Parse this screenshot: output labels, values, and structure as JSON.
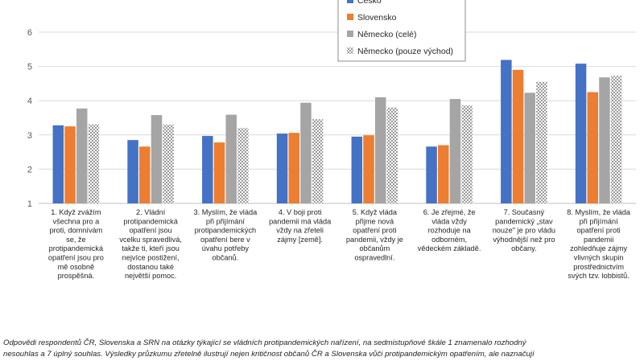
{
  "chart_data": {
    "type": "bar",
    "title": "",
    "xlabel": "",
    "ylabel": "",
    "ylim": [
      1,
      6
    ],
    "yticks": [
      1,
      2,
      3,
      4,
      5,
      6
    ],
    "grid": true,
    "legend_position": "top-right",
    "categories": [
      [
        "1. Když zvážím",
        "všechna pro a",
        "proti, domnívám",
        "se, že",
        "protipandemická",
        "opatření jsou pro",
        "mě osobně",
        "prospěšná."
      ],
      [
        "2. Vládní",
        "protipandemická",
        "opatření jsou",
        "vcelku spravedlivá,",
        "takže ti, kteří jsou",
        "nejvíce postižení,",
        "dostanou také",
        "největší pomoc."
      ],
      [
        "3. Myslím, že vláda",
        "při přijímání",
        "protipandemických",
        "opatření bere v",
        "úvahu potřeby",
        "občanů."
      ],
      [
        "4. V boji proti",
        "pandemii má vláda",
        "vždy na zřeteli",
        "zájmy [země]."
      ],
      [
        "5. Když vláda",
        "přijme nová",
        "opatření proti",
        "pandemii, vždy je",
        "občanům",
        "ospravedlní."
      ],
      [
        "6. Je zřejmé, že",
        "vláda vždy",
        "rozhoduje na",
        "odborném,",
        "vědeckém základě."
      ],
      [
        "7. Současný",
        "pandemický „stav",
        "nouze\" je pro vládu",
        "výhodnější než pro",
        "občany."
      ],
      [
        "8. Myslím, že vláda",
        "při přijímání",
        "opatření proti",
        "pandemii",
        "zohledňuje zájmy",
        "vlivných skupin",
        "prostřednictvím",
        "svých tzv. lobbistů."
      ]
    ],
    "series": [
      {
        "name": "Česko",
        "color": "#4472c4",
        "pattern": "solid",
        "values": [
          3.28,
          2.85,
          2.97,
          3.04,
          2.95,
          2.66,
          5.19,
          5.08
        ]
      },
      {
        "name": "Slovensko",
        "color": "#ed7d31",
        "pattern": "solid",
        "values": [
          3.25,
          2.66,
          2.78,
          3.06,
          2.99,
          2.7,
          4.9,
          4.25
        ]
      },
      {
        "name": "Německo (celé)",
        "color": "#a5a5a5",
        "pattern": "solid",
        "values": [
          3.77,
          3.58,
          3.59,
          3.94,
          4.1,
          4.05,
          4.23,
          4.68
        ]
      },
      {
        "name": "Německo (pouze východ)",
        "color": "#b8b8b8",
        "pattern": "checker",
        "values": [
          3.31,
          3.3,
          3.2,
          3.46,
          3.8,
          3.86,
          4.55,
          4.73
        ]
      }
    ]
  },
  "caption": {
    "line1": "Odpovědi respondentů ČR, Slovenska a SRN na otázky týkající se vládních protipandemických nařízení, na sedmistupňové škále 1 znamenalo rozhodný",
    "line2": "nesouhlas a 7 úplný souhlas. Výsledky průzkumu zřetelně ilustrují nejen kritičnost občanů ČR a Slovenska vůči protipandemickým opatřením, ale naznačují"
  }
}
